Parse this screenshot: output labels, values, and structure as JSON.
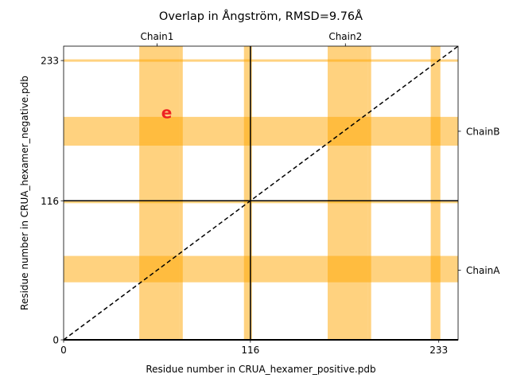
{
  "chart_data": {
    "type": "heatmap",
    "title": "Overlap in Ångström, RMSD=9.76Å",
    "xlabel": "Residue number in CRUA_hexamer_positive.pdb",
    "ylabel": "Residue number in CRUA_hexamer_negative.pdb",
    "xlim": [
      0,
      245
    ],
    "ylim": [
      0,
      245
    ],
    "x_ticks": [
      {
        "value": 0,
        "label": "0"
      },
      {
        "value": 116,
        "label": "116"
      },
      {
        "value": 233,
        "label": "233"
      }
    ],
    "y_ticks": [
      {
        "value": 0,
        "label": "0"
      },
      {
        "value": 116,
        "label": "116"
      },
      {
        "value": 233,
        "label": "233"
      }
    ],
    "top_ticks": [
      {
        "value": 58,
        "label": "Chain1"
      },
      {
        "value": 175,
        "label": "Chain2"
      }
    ],
    "right_ticks": [
      {
        "value": 58,
        "label": "ChainA"
      },
      {
        "value": 174,
        "label": "ChainB"
      }
    ],
    "chain_boundaries": [
      116
    ],
    "diagonal": [
      [
        0,
        0
      ],
      [
        245,
        245
      ]
    ],
    "highlight_color": "#FFA500",
    "vertical_bands": [
      {
        "start": 47,
        "end": 72
      },
      {
        "start": 72,
        "end": 74
      },
      {
        "start": 112,
        "end": 117
      },
      {
        "start": 164,
        "end": 189
      },
      {
        "start": 189,
        "end": 191
      },
      {
        "start": 228,
        "end": 234
      }
    ],
    "horizontal_bands": [
      {
        "start": 48,
        "end": 70
      },
      {
        "start": 164,
        "end": 186
      },
      {
        "start": 162,
        "end": 164
      },
      {
        "start": 232,
        "end": 234
      },
      {
        "start": 114,
        "end": 116
      }
    ],
    "annotations": [
      {
        "text": "e",
        "x": 64,
        "y": 185,
        "color": "#ee2222"
      }
    ]
  }
}
